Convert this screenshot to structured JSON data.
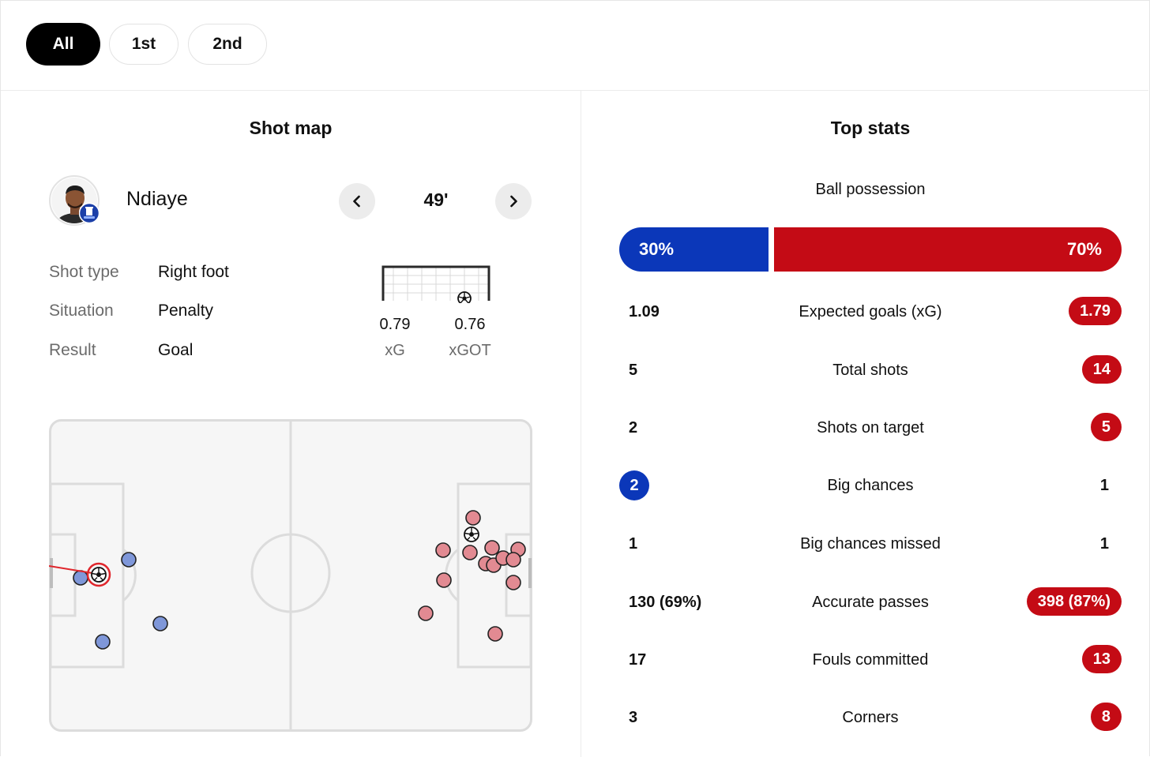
{
  "tabs": [
    {
      "label": "All",
      "active": true
    },
    {
      "label": "1st",
      "active": false
    },
    {
      "label": "2nd",
      "active": false
    }
  ],
  "shot_map": {
    "title": "Shot map",
    "player": {
      "name": "Ndiaye",
      "avatar_icon": "player-avatar-with-everton-crest"
    },
    "minute": "49'",
    "prev_icon": "chevron-left-icon",
    "next_icon": "chevron-right-icon",
    "details": [
      {
        "label": "Shot type",
        "value": "Right foot"
      },
      {
        "label": "Situation",
        "value": "Penalty"
      },
      {
        "label": "Result",
        "value": "Goal"
      }
    ],
    "xg": {
      "value": "0.79",
      "label": "xG"
    },
    "xgot": {
      "value": "0.76",
      "label": "xGOT"
    },
    "colors": {
      "home": "#7f97d9",
      "away": "#e28a92",
      "selected": "#e0262c"
    }
  },
  "top_stats": {
    "title": "Top stats",
    "possession": {
      "label": "Ball possession",
      "home": "30%",
      "away": "70%",
      "home_value": 30,
      "away_value": 70
    },
    "colors": {
      "home": "#0b37b9",
      "away": "#c40b15"
    },
    "rows": [
      {
        "name": "Expected goals (xG)",
        "home": "1.09",
        "away": "1.79",
        "leader": "away"
      },
      {
        "name": "Total shots",
        "home": "5",
        "away": "14",
        "leader": "away"
      },
      {
        "name": "Shots on target",
        "home": "2",
        "away": "5",
        "leader": "away"
      },
      {
        "name": "Big chances",
        "home": "2",
        "away": "1",
        "leader": "home"
      },
      {
        "name": "Big chances missed",
        "home": "1",
        "away": "1",
        "leader": "none"
      },
      {
        "name": "Accurate passes",
        "home": "130 (69%)",
        "away": "398 (87%)",
        "leader": "away"
      },
      {
        "name": "Fouls committed",
        "home": "17",
        "away": "13",
        "leader": "away"
      },
      {
        "name": "Corners",
        "home": "3",
        "away": "8",
        "leader": "away"
      }
    ]
  }
}
